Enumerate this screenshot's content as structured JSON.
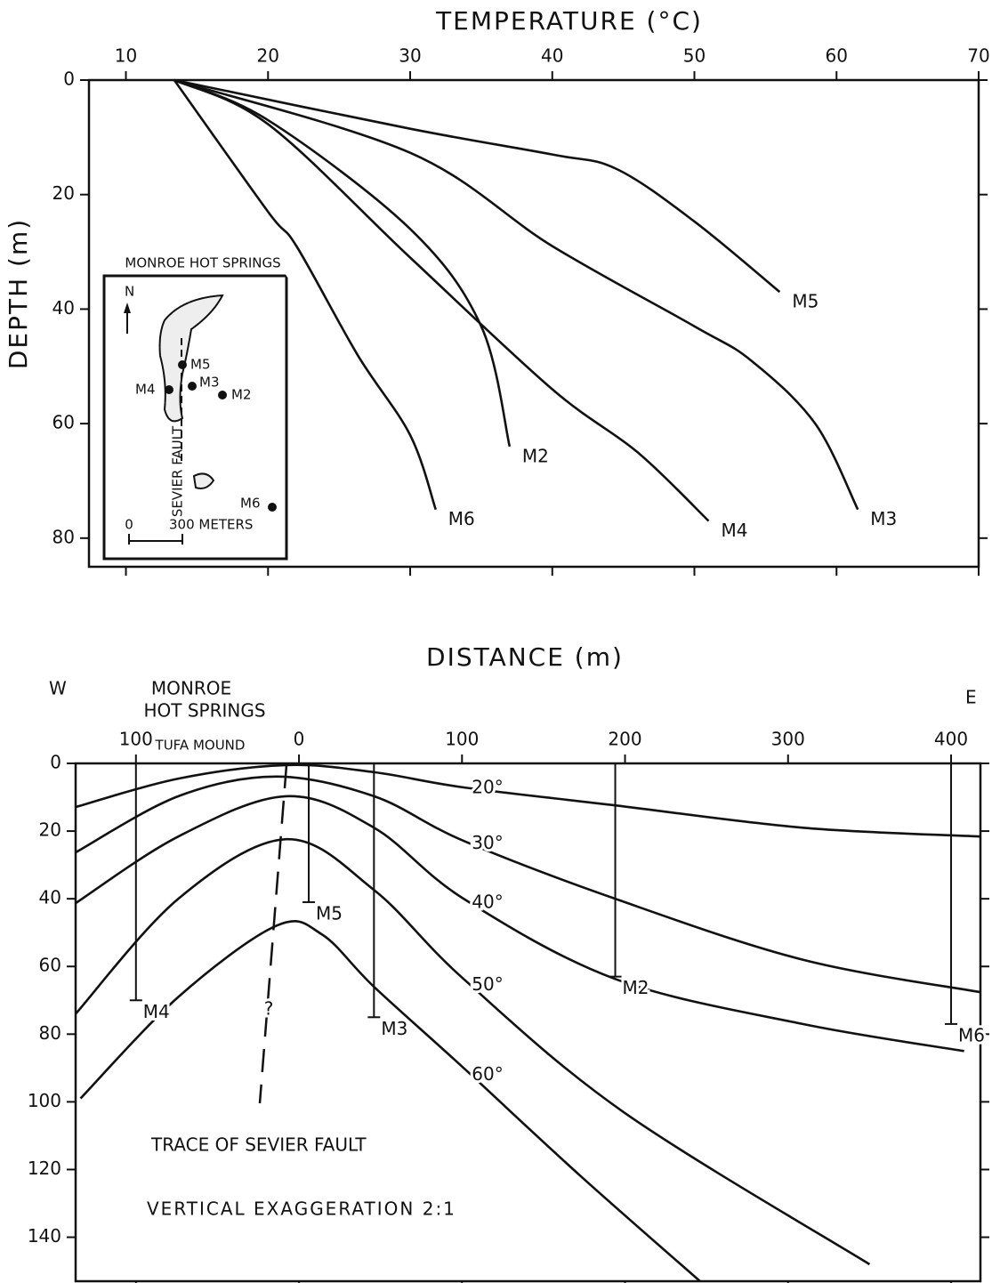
{
  "chart_data": [
    {
      "type": "line",
      "title": "TEMPERATURE (°C)",
      "y_label": "DEPTH (m)",
      "xlim": [
        7.4,
        70
      ],
      "xticks": [
        10,
        20,
        30,
        40,
        50,
        60,
        70
      ],
      "ylim": [
        85,
        0
      ],
      "yticks": [
        0,
        20,
        40,
        60,
        80
      ],
      "series": [
        {
          "name": "M5",
          "x": [
            13.4,
            30,
            40,
            44.5,
            50,
            56
          ],
          "values": [
            0,
            8.5,
            13,
            15.5,
            24.7,
            37
          ]
        },
        {
          "name": "M3",
          "x": [
            13.4,
            30,
            40,
            50,
            54,
            58.5,
            61.5
          ],
          "values": [
            0,
            12.7,
            29,
            43,
            49,
            60,
            75
          ]
        },
        {
          "name": "M2",
          "x": [
            13.4,
            20,
            30,
            35,
            37
          ],
          "values": [
            0,
            7,
            26,
            43,
            64
          ]
        },
        {
          "name": "M4",
          "x": [
            13.4,
            20,
            30,
            40,
            46,
            51
          ],
          "values": [
            0,
            7.7,
            31,
            54,
            65,
            77
          ]
        },
        {
          "name": "M6",
          "x": [
            13.4,
            20,
            22,
            26.3,
            30,
            31.8
          ],
          "values": [
            0,
            23,
            29,
            48,
            62,
            75
          ]
        }
      ],
      "inset": {
        "title": "MONROE HOT SPRINGS",
        "north": "N",
        "fault": "SEVIER FAULT",
        "scale_zero": "0",
        "scale_label": "300 METERS",
        "wells": [
          "M5",
          "M4",
          "M3",
          "M2",
          "M6"
        ]
      }
    },
    {
      "type": "section",
      "title": "DISTANCE (m)",
      "west": "W",
      "east": "E",
      "place": [
        "MONROE",
        "HOT SPRINGS"
      ],
      "mound": "TUFA MOUND",
      "fault_label": "TRACE OF SEVIER FAULT",
      "fault_query": "?",
      "note": "VERTICAL EXAGGERATION 2:1",
      "xlim": [
        -137,
        418
      ],
      "xticks": [
        {
          "value": -100,
          "label": "100"
        },
        0,
        100,
        200,
        300,
        400
      ],
      "ylim": [
        153,
        0
      ],
      "yticks": [
        0,
        20,
        40,
        60,
        80,
        100,
        120,
        140
      ],
      "series": [
        {
          "name": "20°",
          "x": [
            -137,
            -74,
            -8,
            46,
            101,
            194,
            309,
            418
          ],
          "values": [
            12.9,
            4.5,
            0.5,
            2.6,
            7.1,
            12.4,
            19,
            21.6
          ]
        },
        {
          "name": "30°",
          "x": [
            -137,
            -74,
            -14,
            46,
            101,
            194,
            309,
            418
          ],
          "values": [
            26.3,
            9.7,
            3.9,
            9.7,
            22.9,
            40,
            58,
            67.6
          ]
        },
        {
          "name": "40°",
          "x": [
            -137,
            -74,
            -8,
            46,
            101,
            194,
            309,
            408
          ],
          "values": [
            41.3,
            21.6,
            9.7,
            19,
            40,
            63.7,
            77,
            85
          ]
        },
        {
          "name": "50°",
          "x": [
            -137,
            -74,
            -8,
            46,
            101,
            199,
            350
          ],
          "values": [
            74,
            40,
            22.4,
            37.4,
            63.7,
            103,
            148
          ]
        },
        {
          "name": "60°",
          "x": [
            -134,
            -74,
            -14,
            14,
            46,
            101,
            172,
            246
          ],
          "values": [
            99,
            69,
            48,
            50.5,
            66,
            90,
            121.6,
            153
          ]
        }
      ],
      "wells": [
        {
          "name": "M4",
          "x": -100,
          "depth": 70
        },
        {
          "name": "M5",
          "x": 6,
          "depth": 41
        },
        {
          "name": "M3",
          "x": 46,
          "depth": 75
        },
        {
          "name": "M2",
          "x": 194,
          "depth": 63
        },
        {
          "name": "M6",
          "x": 400,
          "depth": 77
        }
      ]
    }
  ]
}
